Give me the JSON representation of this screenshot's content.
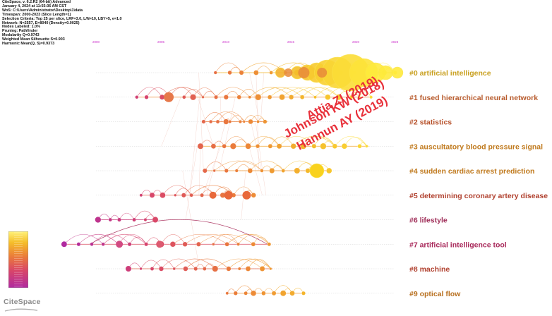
{
  "info_lines": [
    "CiteSpace, v. 6.2.R2 (64-bit) Advanced",
    "January 4, 2024 at 11:55:36 AM CST",
    "WoS: C:\\Users\\Administrator\\Desktop\\1\\data",
    "Timespan: 2000-2023 (Slice Length=1)",
    "Selection Criteria: Top 25 per slice, LRF=3.0, L/N=10, LBY=5, e=1.0",
    "Network: N=2557, E=8040 (Density=0.0025)",
    "Nodes Labeled: 1.0%",
    "Pruning: Pathfinder",
    "Modularity Q=0.9743",
    "Weighted Mean Silhouette S=0.903",
    "Harmonic Mean(Q, S)=0.9373"
  ],
  "timeline_years": [
    {
      "label": "2000",
      "year": 2000
    },
    {
      "label": "2005",
      "year": 2005
    },
    {
      "label": "2010",
      "year": 2010
    },
    {
      "label": "2015",
      "year": 2015
    },
    {
      "label": "2020",
      "year": 2020
    },
    {
      "label": "2023",
      "year": 2023
    }
  ],
  "clusters": [
    {
      "id": 0,
      "label": "#0 artificial intelligence",
      "color": "#c9a020",
      "start": 2009.2,
      "end": 2023.2
    },
    {
      "id": 1,
      "label": "#1 fused hierarchical neural network",
      "color": "#b85c2e",
      "start": 2003.2,
      "end": 2021.2
    },
    {
      "id": 2,
      "label": "#2 statistics",
      "color": "#b8542e",
      "start": 2008.2,
      "end": 2013.2
    },
    {
      "id": 3,
      "label": "#3 auscultatory blood pressure signal",
      "color": "#c07a1e",
      "start": 2008.2,
      "end": 2021.0
    },
    {
      "id": 4,
      "label": "#4 sudden cardiac arrest prediction",
      "color": "#c07a1e",
      "start": 2008.2,
      "end": 2018.0
    },
    {
      "id": 5,
      "label": "#5 determining coronary artery disease",
      "color": "#b0402e",
      "start": 2003.6,
      "end": 2012.2
    },
    {
      "id": 6,
      "label": "#6 lifestyle",
      "color": "#a0305a",
      "start": 2000.0,
      "end": 2004.6
    },
    {
      "id": 7,
      "label": "#7 artificial intelligence tool",
      "color": "#a8285a",
      "start": 1997.5,
      "end": 2013.2
    },
    {
      "id": 8,
      "label": "#8 machine",
      "color": "#b0402e",
      "start": 2002.6,
      "end": 2013.6
    },
    {
      "id": 9,
      "label": "#9 optical flow",
      "color": "#b87020",
      "start": 2010.2,
      "end": 2015.8
    }
  ],
  "annotations": [
    {
      "text": "Attia ZI (2019)"
    },
    {
      "text": "Johnson KW (2018)"
    },
    {
      "text": "Hannun AY (2019)"
    }
  ],
  "logo_text": "CiteSpace"
}
